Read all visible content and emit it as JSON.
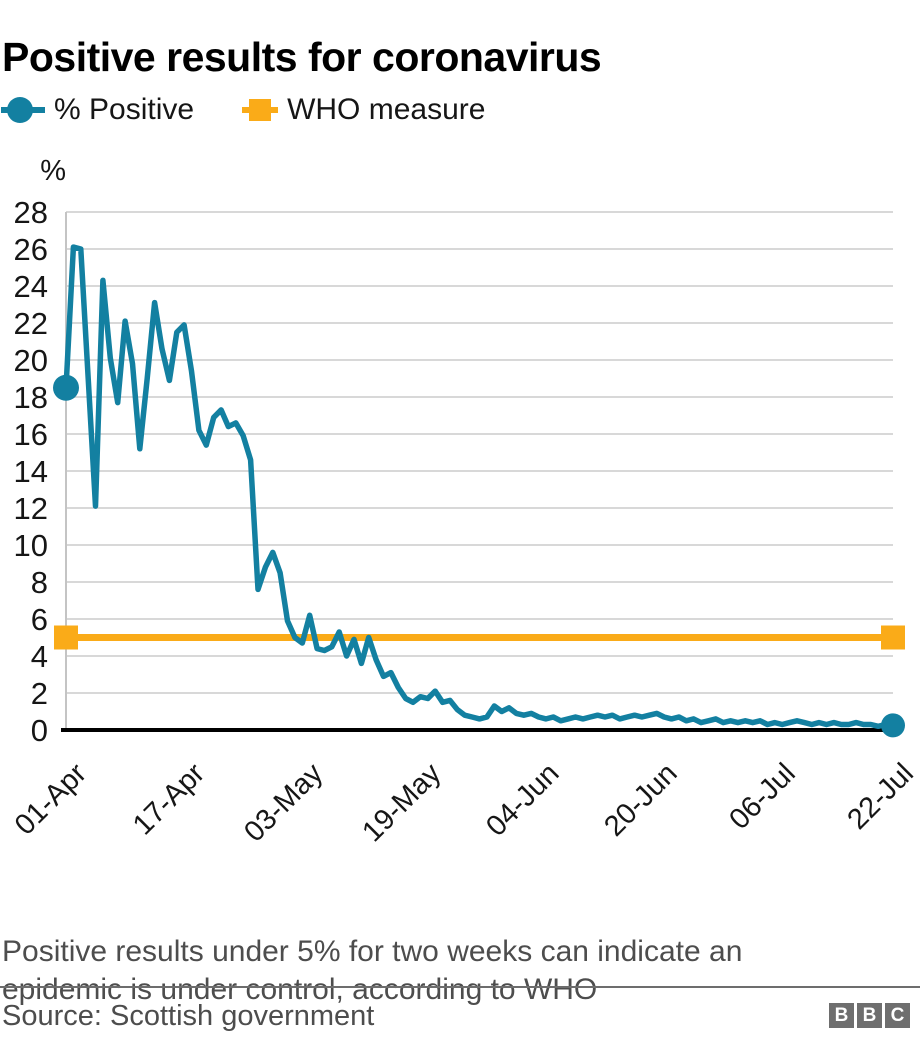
{
  "page": {
    "title": "Positive results for coronavirus",
    "footnote": "Positive results under 5% for two weeks can indicate an epidemic is under control, according to WHO",
    "source": "Source: Scottish government",
    "logo_letters": [
      "B",
      "B",
      "C"
    ]
  },
  "legend": {
    "items": [
      {
        "label": "% Positive",
        "color": "#1380A1",
        "marker": "circle"
      },
      {
        "label": "WHO measure",
        "color": "#FAAB18",
        "marker": "square"
      }
    ]
  },
  "colors": {
    "teal": "#1380A1",
    "orange": "#FAAB18",
    "grid": "#D8D8D8",
    "axis": "#C4C4C4",
    "baseline": "#000000",
    "tick_text": "#161616",
    "muted_text": "#4d4d4d",
    "logo_bg": "#6E6E6E"
  },
  "chart_data": {
    "type": "line",
    "title": "Positive results for coronavirus",
    "unit_label": "%",
    "ylim": [
      0,
      28
    ],
    "y_ticks": [
      0,
      2,
      4,
      6,
      8,
      10,
      12,
      14,
      16,
      18,
      20,
      22,
      24,
      26,
      28
    ],
    "grid": true,
    "legend_position": "top-left",
    "x_count": 113,
    "x_first_date": "01-Apr",
    "x_last_date": "22-Jul",
    "x_tick_labels": [
      "01-Apr",
      "17-Apr",
      "03-May",
      "19-May",
      "04-Jun",
      "20-Jun",
      "06-Jul",
      "22-Jul"
    ],
    "x_tick_day_index": [
      0,
      16,
      32,
      48,
      64,
      80,
      96,
      112
    ],
    "series": [
      {
        "name": "% Positive",
        "color": "#1380A1",
        "marker": "circle-endpoints",
        "values": [
          18.5,
          26.1,
          26.0,
          19.0,
          12.1,
          24.3,
          20.1,
          17.7,
          22.1,
          19.8,
          15.2,
          19.0,
          23.1,
          20.6,
          18.9,
          21.5,
          21.9,
          19.4,
          16.2,
          15.4,
          16.9,
          17.3,
          16.4,
          16.6,
          15.9,
          14.6,
          7.6,
          8.8,
          9.6,
          8.5,
          5.9,
          5.0,
          4.7,
          6.2,
          4.4,
          4.3,
          4.5,
          5.3,
          4.0,
          4.9,
          3.6,
          5.0,
          3.8,
          2.9,
          3.1,
          2.3,
          1.7,
          1.5,
          1.8,
          1.7,
          2.1,
          1.5,
          1.6,
          1.1,
          0.8,
          0.7,
          0.6,
          0.7,
          1.3,
          1.0,
          1.2,
          0.9,
          0.8,
          0.9,
          0.7,
          0.6,
          0.7,
          0.5,
          0.6,
          0.7,
          0.6,
          0.7,
          0.8,
          0.7,
          0.8,
          0.6,
          0.7,
          0.8,
          0.7,
          0.8,
          0.9,
          0.7,
          0.6,
          0.7,
          0.5,
          0.6,
          0.4,
          0.5,
          0.6,
          0.4,
          0.5,
          0.4,
          0.5,
          0.4,
          0.5,
          0.3,
          0.4,
          0.3,
          0.4,
          0.5,
          0.4,
          0.3,
          0.4,
          0.3,
          0.4,
          0.3,
          0.3,
          0.4,
          0.3,
          0.3,
          0.2,
          0.3,
          0.25
        ]
      },
      {
        "name": "WHO measure",
        "color": "#FAAB18",
        "marker": "square-endpoints",
        "constant_value": 5
      }
    ]
  }
}
